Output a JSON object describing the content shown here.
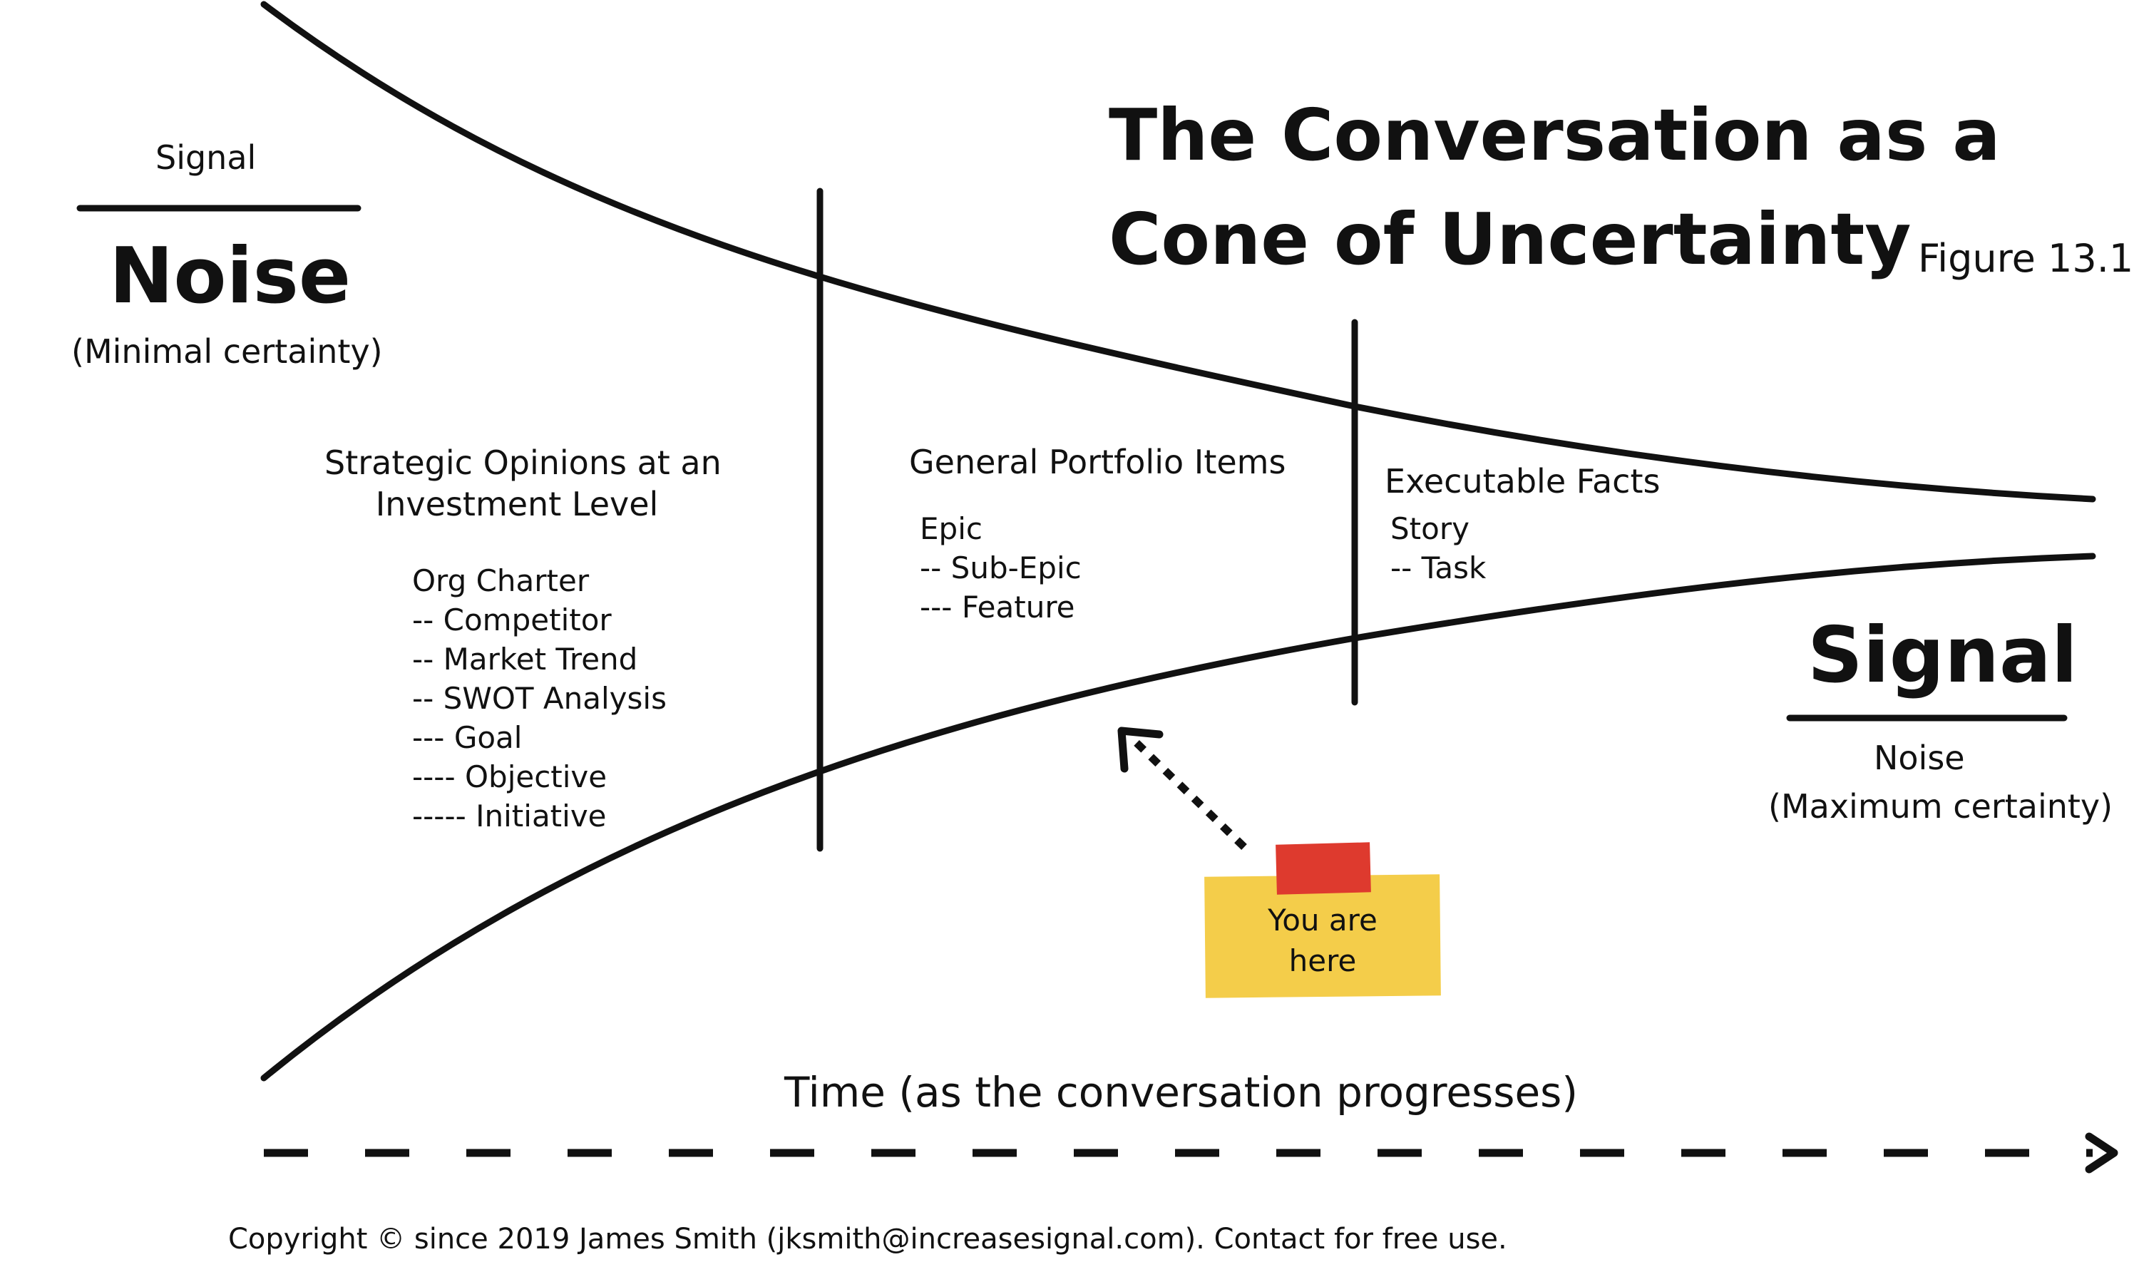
{
  "title": {
    "line1": "The Conversation as a",
    "line2": "Cone of Uncertainty",
    "figure": "Figure 13.1"
  },
  "left_ratio": {
    "numerator": "Signal",
    "denominator": "Noise",
    "caption": "(Minimal certainty)"
  },
  "right_ratio": {
    "numerator": "Signal",
    "denominator": "Noise",
    "caption": "(Maximum certainty)"
  },
  "sections": {
    "strategic": {
      "heading_line1": "Strategic Opinions at an",
      "heading_line2": "Investment Level",
      "items": [
        "Org Charter",
        "-- Competitor",
        "-- Market Trend",
        "-- SWOT Analysis",
        "--- Goal",
        "---- Objective",
        "----- Initiative"
      ]
    },
    "portfolio": {
      "heading": "General Portfolio Items",
      "items": [
        "Epic",
        "-- Sub-Epic",
        "--- Feature"
      ]
    },
    "executable": {
      "heading": "Executable Facts",
      "items": [
        "Story",
        "-- Task"
      ]
    }
  },
  "sticky_note": {
    "line1": "You are",
    "line2": "here",
    "colors": {
      "note": "#f4cd4a",
      "tape": "#de3a2e"
    }
  },
  "time_axis": {
    "label": "Time (as the conversation progresses)"
  },
  "copyright": "Copyright © since 2019 James Smith (jksmith@increasesignal.com). Contact for free use."
}
